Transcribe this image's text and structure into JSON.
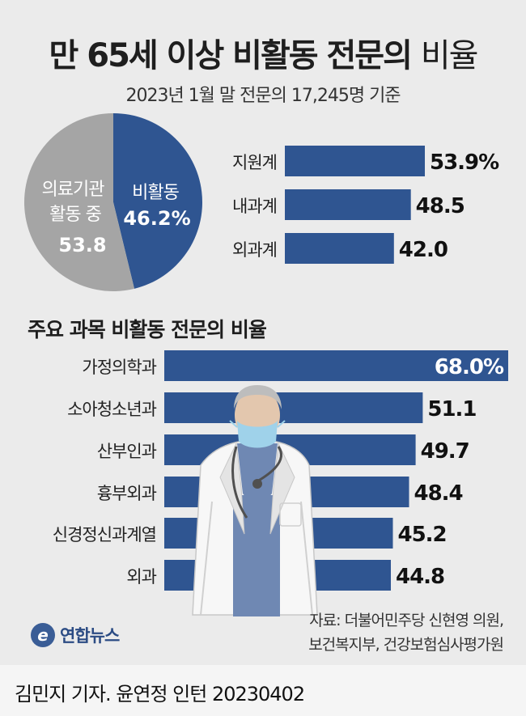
{
  "header": {
    "title_bold": "만 65세 이상 비활동 전문의",
    "title_light": "비율",
    "subtitle": "2023년 1월 말 전문의 17,245명 기준"
  },
  "section_title": "주요 과목 비활동 전문의 비율",
  "source": {
    "line1": "자료: 더불어민주당 신현영 의원,",
    "line2": "보건복지부, 건강보험심사평가원"
  },
  "logo": {
    "mark": "e",
    "text": "연합뉴스"
  },
  "footer": {
    "credit": "김민지 기자. 윤연정 인턴  20230402"
  },
  "colors": {
    "bar": "#2f5591",
    "pie_inactive": "#2f5591",
    "pie_active": "#a5a5a5",
    "background": "#ebebeb"
  },
  "chart_data": [
    {
      "type": "pie",
      "slices": [
        {
          "name": "비활동",
          "value": 46.2,
          "label": "46.2%",
          "color": "#2f5591"
        },
        {
          "name": "의료기관 활동 중",
          "value": 53.8,
          "label": "53.8",
          "color": "#a5a5a5"
        }
      ]
    },
    {
      "type": "bar",
      "orientation": "horizontal",
      "categories": [
        "지원계",
        "내과계",
        "외과계"
      ],
      "values": [
        53.9,
        48.5,
        42.0
      ],
      "value_labels": [
        "53.9%",
        "48.5",
        "42.0"
      ]
    },
    {
      "type": "bar",
      "orientation": "horizontal",
      "title": "주요 과목 비활동 전문의 비율",
      "categories": [
        "가정의학과",
        "소아청소년과",
        "산부인과",
        "흉부외과",
        "신경정신과계열",
        "외과"
      ],
      "values": [
        68.0,
        51.1,
        49.7,
        48.4,
        45.2,
        44.8
      ],
      "value_labels": [
        "68.0%",
        "51.1",
        "49.7",
        "48.4",
        "45.2",
        "44.8"
      ]
    }
  ]
}
